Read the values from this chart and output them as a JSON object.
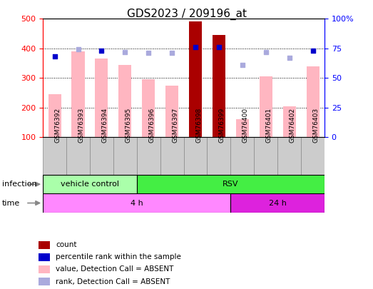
{
  "title": "GDS2023 / 209196_at",
  "samples": [
    "GSM76392",
    "GSM76393",
    "GSM76394",
    "GSM76395",
    "GSM76396",
    "GSM76397",
    "GSM76398",
    "GSM76399",
    "GSM76400",
    "GSM76401",
    "GSM76402",
    "GSM76403"
  ],
  "count_values": [
    245,
    390,
    365,
    345,
    295,
    275,
    490,
    445,
    160,
    305,
    205,
    340
  ],
  "present_mask": [
    false,
    false,
    false,
    false,
    false,
    false,
    true,
    true,
    false,
    false,
    false,
    false
  ],
  "rank_values": [
    68,
    74,
    73,
    72,
    71,
    71,
    76,
    76,
    61,
    72,
    67,
    73
  ],
  "rank_present_mask": [
    true,
    false,
    true,
    false,
    false,
    false,
    true,
    true,
    false,
    false,
    false,
    true
  ],
  "ylim_left": [
    100,
    500
  ],
  "ylim_right": [
    0,
    100
  ],
  "yticks_left": [
    100,
    200,
    300,
    400,
    500
  ],
  "yticks_right": [
    0,
    25,
    50,
    75,
    100
  ],
  "yticklabels_right": [
    "0",
    "25",
    "50",
    "75",
    "100%"
  ],
  "dark_red": "#AA0000",
  "light_pink": "#FFB6C1",
  "dark_blue": "#0000CC",
  "light_blue": "#AAAADD",
  "legend_items": [
    {
      "label": "count",
      "color": "#AA0000"
    },
    {
      "label": "percentile rank within the sample",
      "color": "#0000CC"
    },
    {
      "label": "value, Detection Call = ABSENT",
      "color": "#FFB6C1"
    },
    {
      "label": "rank, Detection Call = ABSENT",
      "color": "#AAAADD"
    }
  ],
  "infection_groups": [
    {
      "label": "vehicle control",
      "start": 0,
      "end": 4,
      "color": "#AAFFAA"
    },
    {
      "label": "RSV",
      "start": 4,
      "end": 12,
      "color": "#44EE44"
    }
  ],
  "time_groups": [
    {
      "label": "4 h",
      "start": 0,
      "end": 8,
      "color": "#FF88FF"
    },
    {
      "label": "24 h",
      "start": 8,
      "end": 12,
      "color": "#DD22DD"
    }
  ]
}
